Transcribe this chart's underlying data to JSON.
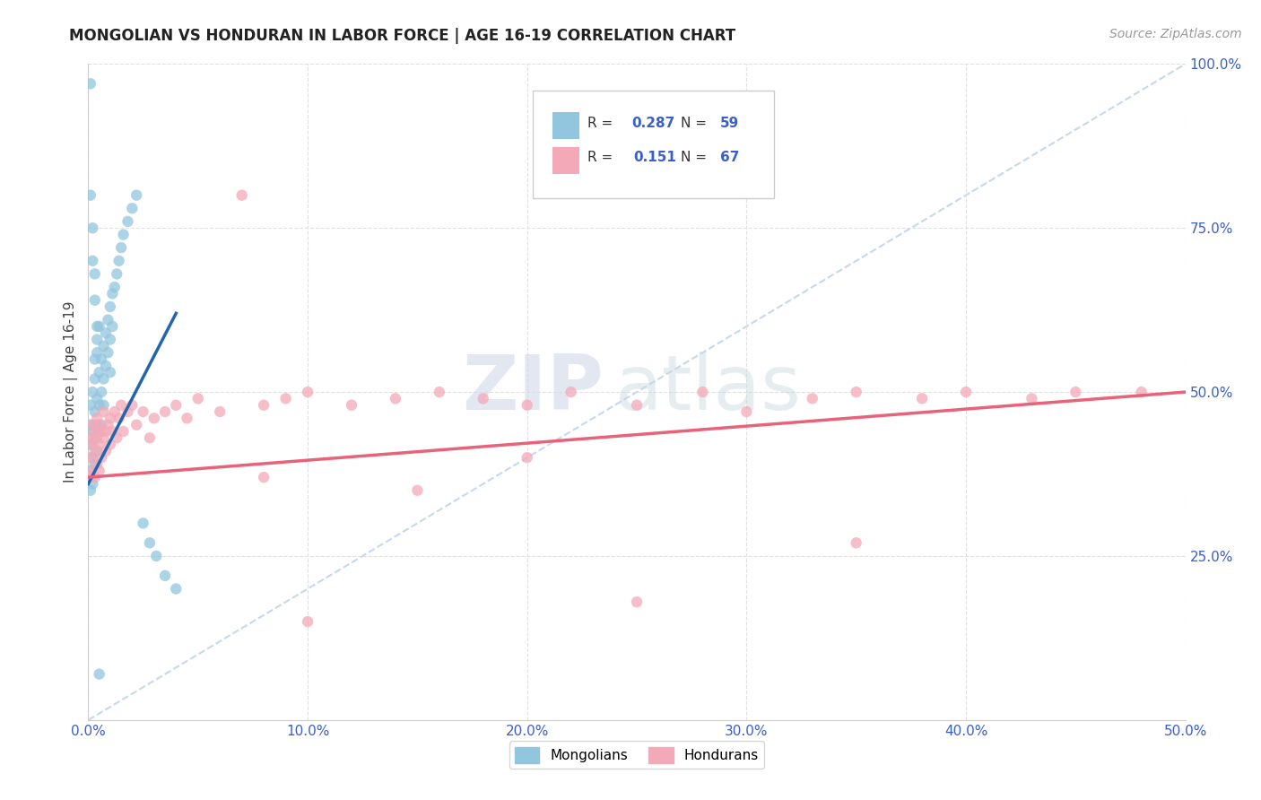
{
  "title": "MONGOLIAN VS HONDURAN IN LABOR FORCE | AGE 16-19 CORRELATION CHART",
  "source_text": "Source: ZipAtlas.com",
  "ylabel_label": "In Labor Force | Age 16-19",
  "watermark_zip": "ZIP",
  "watermark_atlas": "atlas",
  "mongolian_color": "#92c5de",
  "honduran_color": "#f4a9b8",
  "trend_mongolian_color": "#2166ac",
  "trend_honduran_color": "#e8637a",
  "diagonal_color": "#aec6e8",
  "r_color": "#3a5fc8",
  "background_color": "#ffffff",
  "grid_color": "#e0e0e0",
  "x_ticks": [
    0.0,
    0.1,
    0.2,
    0.3,
    0.4,
    0.5
  ],
  "y_ticks": [
    0.0,
    0.25,
    0.5,
    0.75,
    1.0
  ],
  "x_tick_labels": [
    "0.0%",
    "10.0%",
    "20.0%",
    "30.0%",
    "40.0%",
    "50.0%"
  ],
  "y_tick_labels": [
    "",
    "25.0%",
    "50.0%",
    "75.0%",
    "100.0%"
  ],
  "mongolian_x": [
    0.001,
    0.001,
    0.001,
    0.001,
    0.001,
    0.002,
    0.002,
    0.002,
    0.002,
    0.003,
    0.003,
    0.003,
    0.003,
    0.003,
    0.004,
    0.004,
    0.004,
    0.004,
    0.005,
    0.005,
    0.005,
    0.005,
    0.006,
    0.006,
    0.006,
    0.007,
    0.007,
    0.007,
    0.008,
    0.008,
    0.009,
    0.009,
    0.01,
    0.01,
    0.01,
    0.011,
    0.011,
    0.012,
    0.013,
    0.014,
    0.015,
    0.016,
    0.018,
    0.02,
    0.022,
    0.025,
    0.028,
    0.031,
    0.035,
    0.04,
    0.001,
    0.001,
    0.002,
    0.002,
    0.003,
    0.003,
    0.004,
    0.004,
    0.005
  ],
  "mongolian_y": [
    0.42,
    0.45,
    0.48,
    0.38,
    0.35,
    0.5,
    0.44,
    0.4,
    0.36,
    0.52,
    0.47,
    0.43,
    0.39,
    0.55,
    0.49,
    0.45,
    0.41,
    0.58,
    0.53,
    0.48,
    0.44,
    0.6,
    0.55,
    0.5,
    0.45,
    0.57,
    0.52,
    0.48,
    0.59,
    0.54,
    0.61,
    0.56,
    0.63,
    0.58,
    0.53,
    0.65,
    0.6,
    0.66,
    0.68,
    0.7,
    0.72,
    0.74,
    0.76,
    0.78,
    0.8,
    0.3,
    0.27,
    0.25,
    0.22,
    0.2,
    0.97,
    0.8,
    0.75,
    0.7,
    0.68,
    0.64,
    0.6,
    0.56,
    0.07
  ],
  "honduran_x": [
    0.001,
    0.001,
    0.001,
    0.002,
    0.002,
    0.002,
    0.003,
    0.003,
    0.003,
    0.004,
    0.004,
    0.004,
    0.005,
    0.005,
    0.005,
    0.006,
    0.006,
    0.007,
    0.007,
    0.008,
    0.008,
    0.009,
    0.01,
    0.01,
    0.011,
    0.012,
    0.013,
    0.014,
    0.015,
    0.016,
    0.018,
    0.02,
    0.022,
    0.025,
    0.028,
    0.03,
    0.035,
    0.04,
    0.045,
    0.05,
    0.06,
    0.07,
    0.08,
    0.09,
    0.1,
    0.12,
    0.14,
    0.16,
    0.18,
    0.2,
    0.22,
    0.25,
    0.28,
    0.3,
    0.33,
    0.35,
    0.38,
    0.4,
    0.43,
    0.45,
    0.48,
    0.35,
    0.2,
    0.25,
    0.15,
    0.1,
    0.08
  ],
  "honduran_y": [
    0.4,
    0.37,
    0.43,
    0.42,
    0.38,
    0.45,
    0.41,
    0.37,
    0.44,
    0.43,
    0.39,
    0.46,
    0.42,
    0.38,
    0.45,
    0.44,
    0.4,
    0.43,
    0.47,
    0.44,
    0.41,
    0.45,
    0.46,
    0.42,
    0.44,
    0.47,
    0.43,
    0.46,
    0.48,
    0.44,
    0.47,
    0.48,
    0.45,
    0.47,
    0.43,
    0.46,
    0.47,
    0.48,
    0.46,
    0.49,
    0.47,
    0.8,
    0.48,
    0.49,
    0.5,
    0.48,
    0.49,
    0.5,
    0.49,
    0.48,
    0.5,
    0.48,
    0.5,
    0.47,
    0.49,
    0.5,
    0.49,
    0.5,
    0.49,
    0.5,
    0.5,
    0.27,
    0.4,
    0.18,
    0.35,
    0.15,
    0.37
  ],
  "trend_mong_x0": 0.0,
  "trend_mong_y0": 0.36,
  "trend_mong_x1": 0.04,
  "trend_mong_y1": 0.62,
  "trend_hond_x0": 0.0,
  "trend_hond_y0": 0.37,
  "trend_hond_x1": 0.5,
  "trend_hond_y1": 0.5
}
